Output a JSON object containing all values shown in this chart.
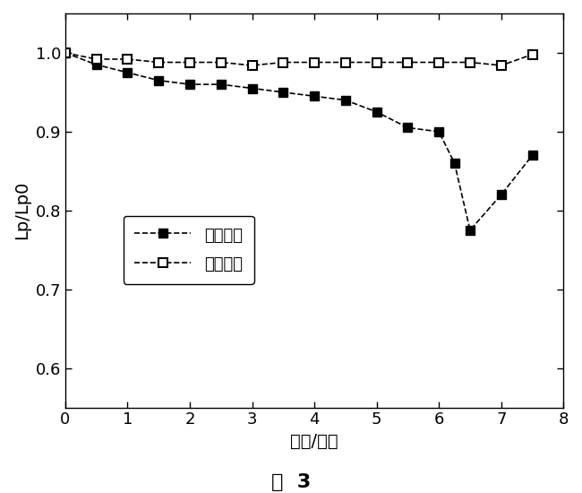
{
  "unchanged_x": [
    0,
    0.5,
    1.0,
    1.5,
    2.0,
    2.5,
    3.0,
    3.5,
    4.0,
    4.5,
    5.0,
    5.5,
    6.0,
    6.25,
    6.5,
    7.0,
    7.5
  ],
  "unchanged_y": [
    1.0,
    0.985,
    0.975,
    0.965,
    0.96,
    0.96,
    0.955,
    0.95,
    0.945,
    0.94,
    0.925,
    0.905,
    0.9,
    0.86,
    0.775,
    0.82,
    0.87
  ],
  "changed_x": [
    0,
    0.5,
    1.0,
    1.5,
    2.0,
    2.5,
    3.0,
    3.5,
    4.0,
    4.5,
    5.0,
    5.5,
    6.0,
    6.5,
    7.0,
    7.5
  ],
  "changed_y": [
    1.0,
    0.992,
    0.992,
    0.988,
    0.988,
    0.988,
    0.984,
    0.988,
    0.988,
    0.988,
    0.988,
    0.988,
    0.988,
    0.988,
    0.984,
    0.998
  ],
  "xlabel": "时间/小时",
  "ylabel": "Lp/Lp0",
  "label_unchanged": "流向未变",
  "label_changed": "流向改变",
  "caption": "图  3",
  "xlim": [
    0,
    8
  ],
  "ylim": [
    0.55,
    1.05
  ],
  "xticks": [
    0,
    1,
    2,
    3,
    4,
    5,
    6,
    7,
    8
  ],
  "yticks": [
    0.6,
    0.7,
    0.8,
    0.9,
    1.0
  ],
  "background_color": "#ffffff",
  "line_color": "#000000"
}
